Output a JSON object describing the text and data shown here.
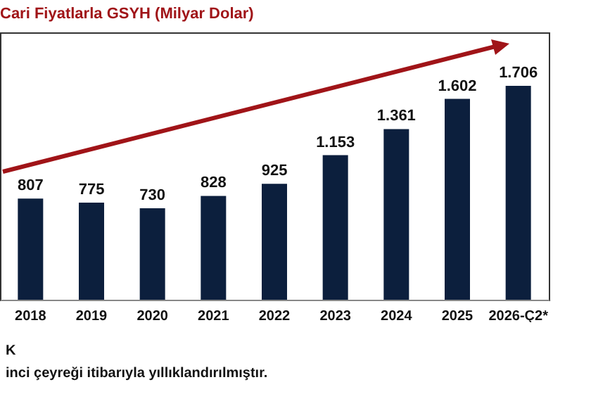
{
  "chart_data": {
    "type": "bar",
    "title": "Cari Fiyatlarla GSYH (Milyar Dolar)",
    "categories": [
      "2018",
      "2019",
      "2020",
      "2021",
      "2022",
      "2023",
      "2024",
      "2025",
      "2026-Ç2*"
    ],
    "values": [
      807,
      775,
      730,
      828,
      925,
      1153,
      1361,
      1602,
      1706
    ],
    "value_labels": [
      "807",
      "775",
      "730",
      "828",
      "925",
      "1.153",
      "1.361",
      "1.602",
      "1.706"
    ],
    "color": "#0c1f3d",
    "annotations": [
      "K",
      "inci çeyreği itibarıyla yıllıklandırılmıştır."
    ]
  }
}
